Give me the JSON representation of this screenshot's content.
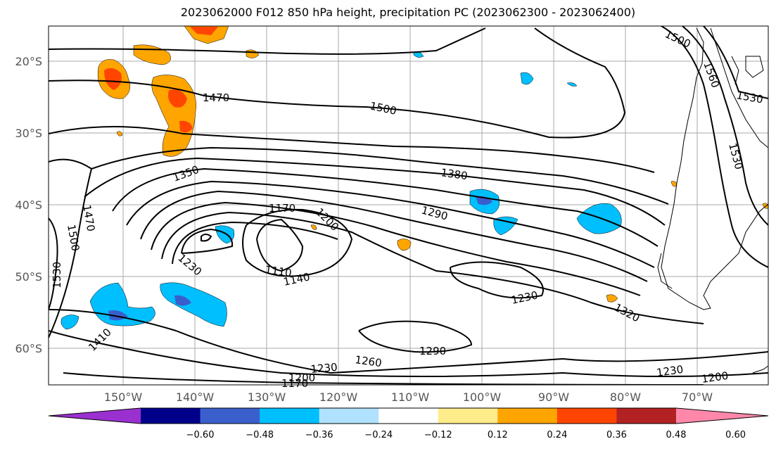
{
  "title": "2023062000 F012 850 hPa height, precipitation PC (2023062300 - 2023062400)",
  "lon_ticks": [
    "150°W",
    "140°W",
    "130°W",
    "120°W",
    "110°W",
    "100°W",
    "90°W",
    "80°W",
    "70°W"
  ],
  "lat_ticks": [
    "20°S",
    "30°S",
    "40°S",
    "50°S",
    "60°S"
  ],
  "colorbar": {
    "colors": [
      "#9b30d0",
      "#00008b",
      "#3a5fcd",
      "#00bfff",
      "#b0e2ff",
      "#ffffff",
      "#ffec8b",
      "#ffa500",
      "#ff4500",
      "#b22222",
      "#ff88aa"
    ],
    "tick_labels": [
      "−0.60",
      "−0.48",
      "−0.36",
      "−0.24",
      "−0.12",
      "0.12",
      "0.24",
      "0.36",
      "0.48",
      "0.60"
    ]
  },
  "contour_labels": [
    "1470",
    "1500",
    "1530",
    "1560",
    "1530",
    "1350",
    "1380",
    "1170",
    "1200",
    "1290",
    "1470",
    "1500",
    "1530",
    "1230",
    "1110",
    "1140",
    "1230",
    "1320",
    "1410",
    "1290",
    "1260",
    "1230",
    "1200",
    "1170",
    "1230",
    "1200",
    "1500"
  ]
}
